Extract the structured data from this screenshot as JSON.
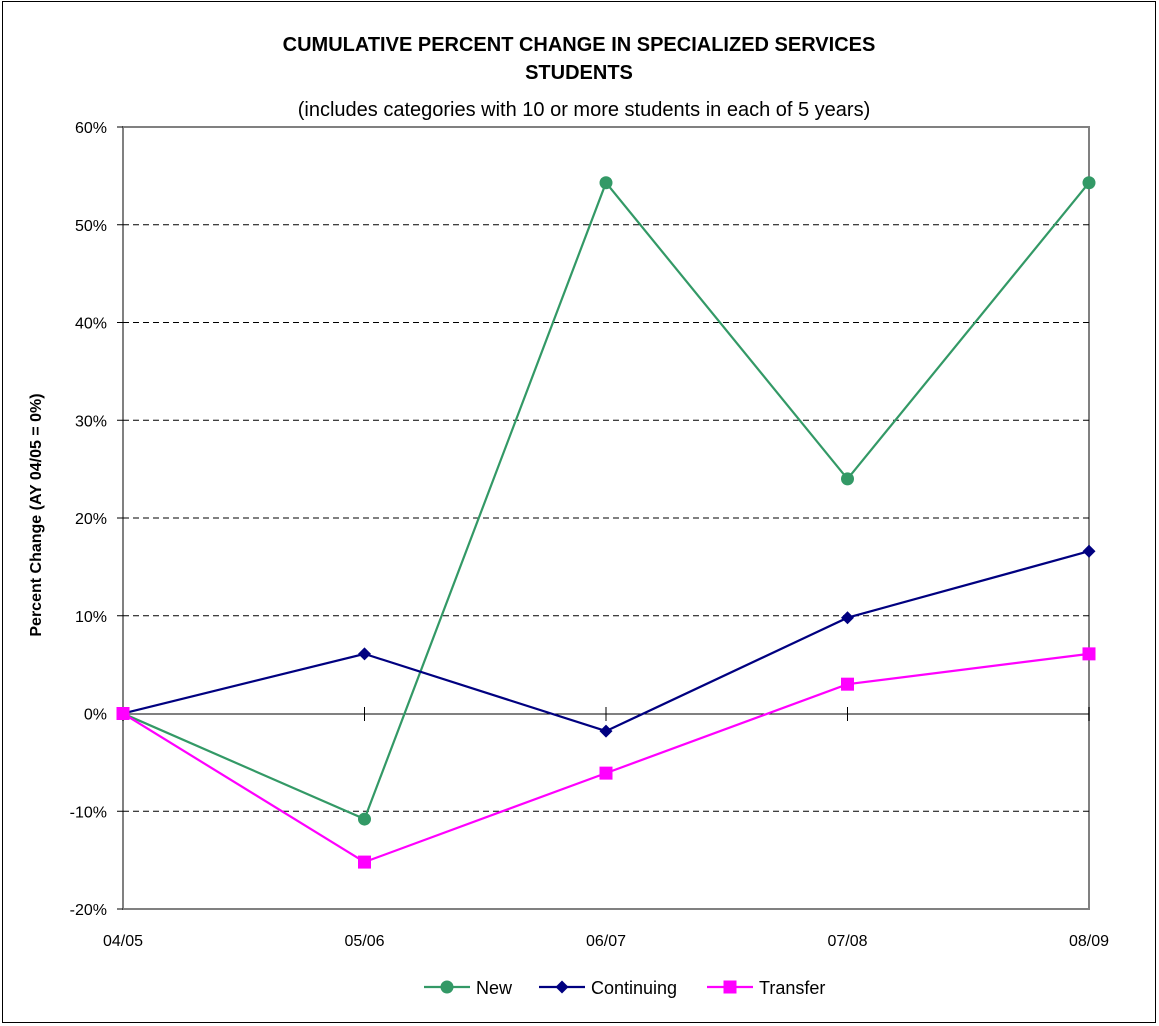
{
  "chart_data": {
    "type": "line",
    "title": "CUMULATIVE PERCENT CHANGE IN SPECIALIZED SERVICES",
    "title_line2": "STUDENTS",
    "subtitle": "(includes categories with 10 or more students in each of 5 years)",
    "xlabel": "",
    "ylabel": "Percent Change (AY 04/05 = 0%)",
    "categories": [
      "04/05",
      "05/06",
      "06/07",
      "07/08",
      "08/09"
    ],
    "ylim": [
      -20,
      60
    ],
    "yticks": [
      -20,
      -10,
      0,
      10,
      20,
      30,
      40,
      50,
      60
    ],
    "ytick_labels": [
      "-20%",
      "-10%",
      "0%",
      "10%",
      "20%",
      "30%",
      "40%",
      "50%",
      "60%"
    ],
    "grid": "horizontal dashed",
    "legend_position": "bottom",
    "series": [
      {
        "name": "New",
        "color": "#339966",
        "marker": "circle",
        "values": [
          0,
          -10.8,
          54.3,
          24.0,
          54.3
        ]
      },
      {
        "name": "Continuing",
        "color": "#000080",
        "marker": "diamond",
        "values": [
          0,
          6.1,
          -1.8,
          9.8,
          16.6
        ]
      },
      {
        "name": "Transfer",
        "color": "#FF00FF",
        "marker": "square",
        "values": [
          0,
          -15.2,
          -6.1,
          3.0,
          6.1
        ]
      }
    ]
  }
}
